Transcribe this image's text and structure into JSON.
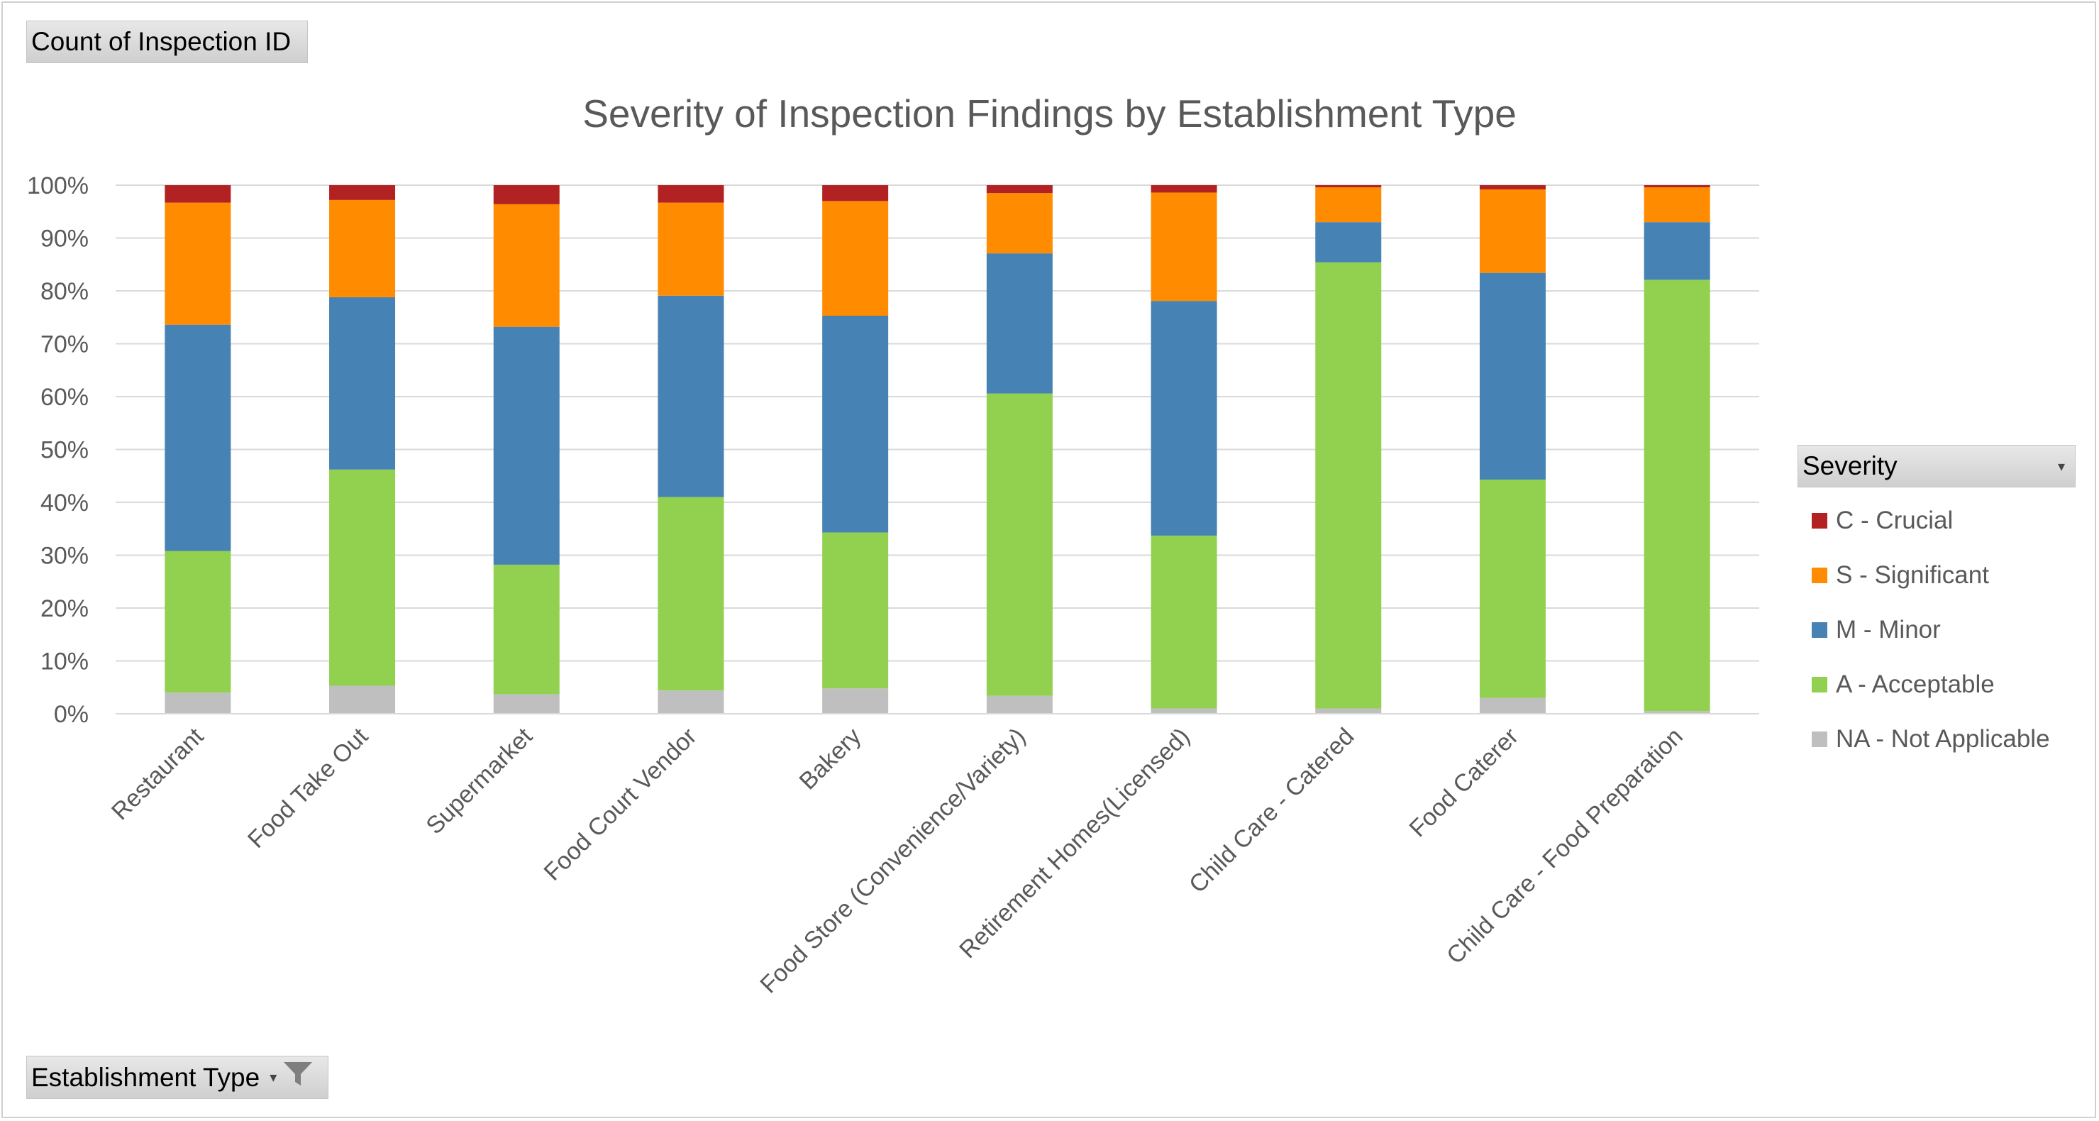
{
  "pivot": {
    "value_field": "Count of Inspection ID",
    "axis_field": "Establishment Type"
  },
  "legend": {
    "header": "Severity"
  },
  "chart_data": {
    "type": "bar",
    "stacked": "percent",
    "title": "Severity of Inspection Findings by Establishment Type",
    "xlabel": "",
    "ylabel": "",
    "ylim": [
      0,
      100
    ],
    "yticks": [
      "0%",
      "10%",
      "20%",
      "30%",
      "40%",
      "50%",
      "60%",
      "70%",
      "80%",
      "90%",
      "100%"
    ],
    "grid": true,
    "legend_position": "right",
    "categories": [
      "Restaurant",
      "Food Take Out",
      "Supermarket",
      "Food Court Vendor",
      "Bakery",
      "Food Store (Convenience/Variety)",
      "Retirement Homes(Licensed)",
      "Child Care - Catered",
      "Food Caterer",
      "Child Care - Food Preparation"
    ],
    "series": [
      {
        "name": "NA - Not Applicable",
        "color": "#bfbfbf",
        "values": [
          4,
          5.3,
          3.7,
          4.4,
          4.8,
          3.4,
          1,
          1,
          3,
          0.5
        ]
      },
      {
        "name": "A - Acceptable",
        "color": "#92d050",
        "values": [
          26.8,
          40.9,
          24.5,
          36.6,
          29.5,
          57.2,
          32.7,
          84.4,
          41.3,
          81.6
        ]
      },
      {
        "name": "M - Minor",
        "color": "#4682b4",
        "values": [
          42.8,
          32.6,
          45,
          38.1,
          41,
          26.5,
          44.4,
          7.6,
          39.1,
          10.9
        ]
      },
      {
        "name": "S - Significant",
        "color": "#ff8c00",
        "values": [
          23.1,
          18.4,
          23.2,
          17.6,
          21.7,
          11.4,
          20.5,
          6.6,
          15.8,
          6.6
        ]
      },
      {
        "name": "C - Crucial",
        "color": "#b22222",
        "values": [
          3.3,
          2.8,
          3.6,
          3.3,
          3,
          1.5,
          1.4,
          0.4,
          0.8,
          0.4
        ]
      }
    ]
  }
}
